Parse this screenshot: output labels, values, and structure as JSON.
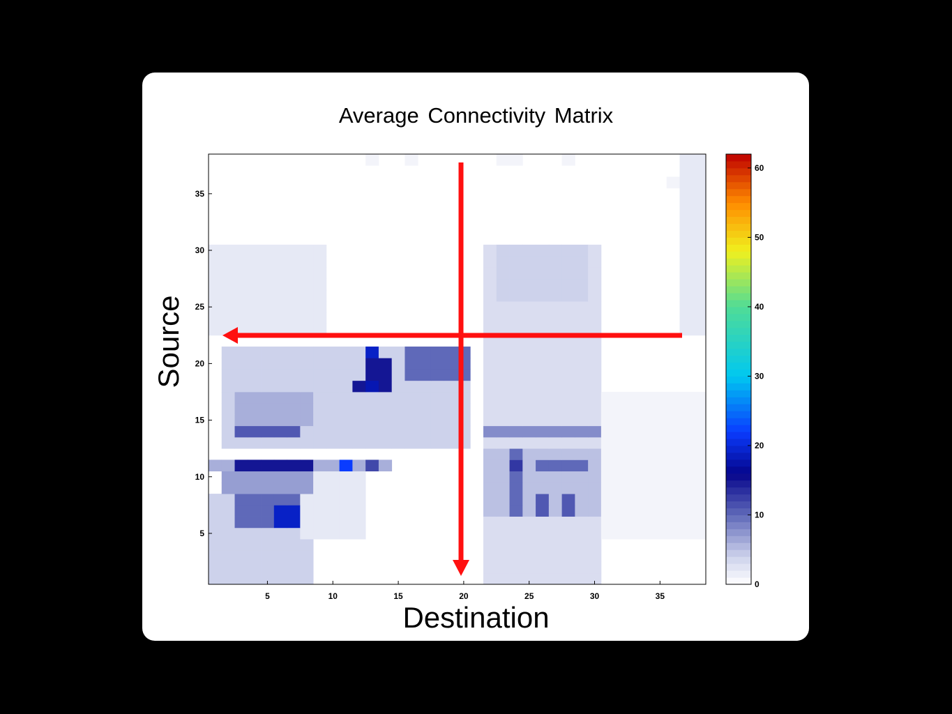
{
  "chart_data": {
    "type": "heatmap",
    "title": "Average Connectivity Matrix",
    "xlabel": "Destination",
    "ylabel": "Source",
    "n": 38,
    "xlim": [
      0.5,
      38.5
    ],
    "ylim": [
      0.5,
      38.5
    ],
    "x_ticks": [
      5,
      10,
      15,
      20,
      25,
      30,
      35
    ],
    "y_ticks": [
      5,
      10,
      15,
      20,
      25,
      30,
      35
    ],
    "colorbar": {
      "min": 0,
      "max": 62,
      "ticks": [
        0,
        10,
        20,
        30,
        40,
        50,
        60
      ],
      "colormap": "white-blue-cyan-yellow-red"
    },
    "grid": false,
    "legend": "none",
    "annotations": [
      {
        "type": "arrow",
        "direction": "down",
        "label": ""
      },
      {
        "type": "arrow",
        "direction": "left",
        "label": ""
      }
    ],
    "blocks": [
      {
        "x": [
          1,
          8
        ],
        "y": [
          1,
          8
        ],
        "value": 4
      },
      {
        "x": [
          3,
          8
        ],
        "y": [
          6,
          8
        ],
        "value": 10
      },
      {
        "x": [
          6,
          7
        ],
        "y": [
          6,
          7
        ],
        "value": 19
      },
      {
        "x": [
          8,
          12
        ],
        "y": [
          5,
          10
        ],
        "value": 2
      },
      {
        "x": [
          2,
          8
        ],
        "y": [
          9,
          10
        ],
        "value": 7
      },
      {
        "x": [
          1,
          14
        ],
        "y": [
          11,
          11
        ],
        "value": 6
      },
      {
        "x": [
          3,
          8
        ],
        "y": [
          11,
          11
        ],
        "value": 15
      },
      {
        "x": [
          11,
          11
        ],
        "y": [
          11,
          11
        ],
        "value": 22
      },
      {
        "x": [
          13,
          13
        ],
        "y": [
          11,
          11
        ],
        "value": 12
      },
      {
        "x": [
          2,
          20
        ],
        "y": [
          13,
          21
        ],
        "value": 4
      },
      {
        "x": [
          3,
          7
        ],
        "y": [
          14,
          14
        ],
        "value": 11
      },
      {
        "x": [
          3,
          8
        ],
        "y": [
          15,
          17
        ],
        "value": 6
      },
      {
        "x": [
          12,
          12
        ],
        "y": [
          18,
          18
        ],
        "value": 15
      },
      {
        "x": [
          13,
          14
        ],
        "y": [
          18,
          20
        ],
        "value": 15
      },
      {
        "x": [
          13,
          13
        ],
        "y": [
          18,
          18
        ],
        "value": 18
      },
      {
        "x": [
          13,
          13
        ],
        "y": [
          21,
          21
        ],
        "value": 19
      },
      {
        "x": [
          16,
          20
        ],
        "y": [
          19,
          21
        ],
        "value": 10
      },
      {
        "x": [
          1,
          9
        ],
        "y": [
          23,
          30
        ],
        "value": 2
      },
      {
        "x": [
          22,
          30
        ],
        "y": [
          1,
          30
        ],
        "value": 3
      },
      {
        "x": [
          22,
          30
        ],
        "y": [
          7,
          12
        ],
        "value": 5
      },
      {
        "x": [
          24,
          24
        ],
        "y": [
          7,
          12
        ],
        "value": 10
      },
      {
        "x": [
          26,
          26
        ],
        "y": [
          7,
          8
        ],
        "value": 11
      },
      {
        "x": [
          28,
          28
        ],
        "y": [
          7,
          8
        ],
        "value": 11
      },
      {
        "x": [
          24,
          24
        ],
        "y": [
          11,
          11
        ],
        "value": 13
      },
      {
        "x": [
          26,
          29
        ],
        "y": [
          11,
          11
        ],
        "value": 10
      },
      {
        "x": [
          22,
          30
        ],
        "y": [
          14,
          14
        ],
        "value": 8
      },
      {
        "x": [
          23,
          29
        ],
        "y": [
          26,
          30
        ],
        "value": 4
      },
      {
        "x": [
          31,
          38
        ],
        "y": [
          5,
          17
        ],
        "value": 1
      },
      {
        "x": [
          37,
          38
        ],
        "y": [
          23,
          38
        ],
        "value": 2
      },
      {
        "x": [
          13,
          13
        ],
        "y": [
          38,
          38
        ],
        "value": 1
      },
      {
        "x": [
          16,
          16
        ],
        "y": [
          38,
          38
        ],
        "value": 1
      },
      {
        "x": [
          23,
          24
        ],
        "y": [
          38,
          38
        ],
        "value": 1
      },
      {
        "x": [
          28,
          28
        ],
        "y": [
          38,
          38
        ],
        "value": 1
      },
      {
        "x": [
          36,
          36
        ],
        "y": [
          36,
          36
        ],
        "value": 1
      }
    ]
  }
}
